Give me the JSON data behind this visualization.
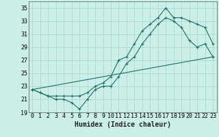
{
  "xlabel": "Humidex (Indice chaleur)",
  "bg_color": "#cceee8",
  "grid_color": "#aad8d0",
  "line_color": "#1a6e62",
  "xlim": [
    -0.5,
    23.5
  ],
  "ylim": [
    19,
    36
  ],
  "yticks": [
    19,
    21,
    23,
    25,
    27,
    29,
    31,
    33,
    35
  ],
  "xticks": [
    0,
    1,
    2,
    3,
    4,
    5,
    6,
    7,
    8,
    9,
    10,
    11,
    12,
    13,
    14,
    15,
    16,
    17,
    18,
    19,
    20,
    21,
    22,
    23
  ],
  "series1_x": [
    0,
    1,
    2,
    3,
    4,
    5,
    6,
    7,
    8,
    9,
    10,
    11,
    12,
    13,
    14,
    15,
    16,
    17,
    18,
    19,
    20,
    21,
    22,
    23
  ],
  "series1_y": [
    22.5,
    22.0,
    21.5,
    21.0,
    21.0,
    20.5,
    19.5,
    21.0,
    22.5,
    23.0,
    23.0,
    24.5,
    26.5,
    27.5,
    29.5,
    31.0,
    32.5,
    33.5,
    33.0,
    32.0,
    30.0,
    29.0,
    29.5,
    27.5
  ],
  "series2_x": [
    0,
    1,
    2,
    3,
    4,
    5,
    6,
    7,
    8,
    9,
    10,
    11,
    12,
    13,
    14,
    15,
    16,
    17,
    18,
    19,
    20,
    21,
    22,
    23
  ],
  "series2_y": [
    22.5,
    22.0,
    21.5,
    21.5,
    21.5,
    21.5,
    21.5,
    22.0,
    23.0,
    23.5,
    24.5,
    27.0,
    27.5,
    29.5,
    31.5,
    32.5,
    33.5,
    35.0,
    33.5,
    33.5,
    33.0,
    32.5,
    32.0,
    29.5
  ],
  "series3_x": [
    0,
    23
  ],
  "series3_y": [
    22.5,
    27.5
  ],
  "font_size_label": 7,
  "font_size_tick": 6,
  "font_size_xlabel": 7
}
